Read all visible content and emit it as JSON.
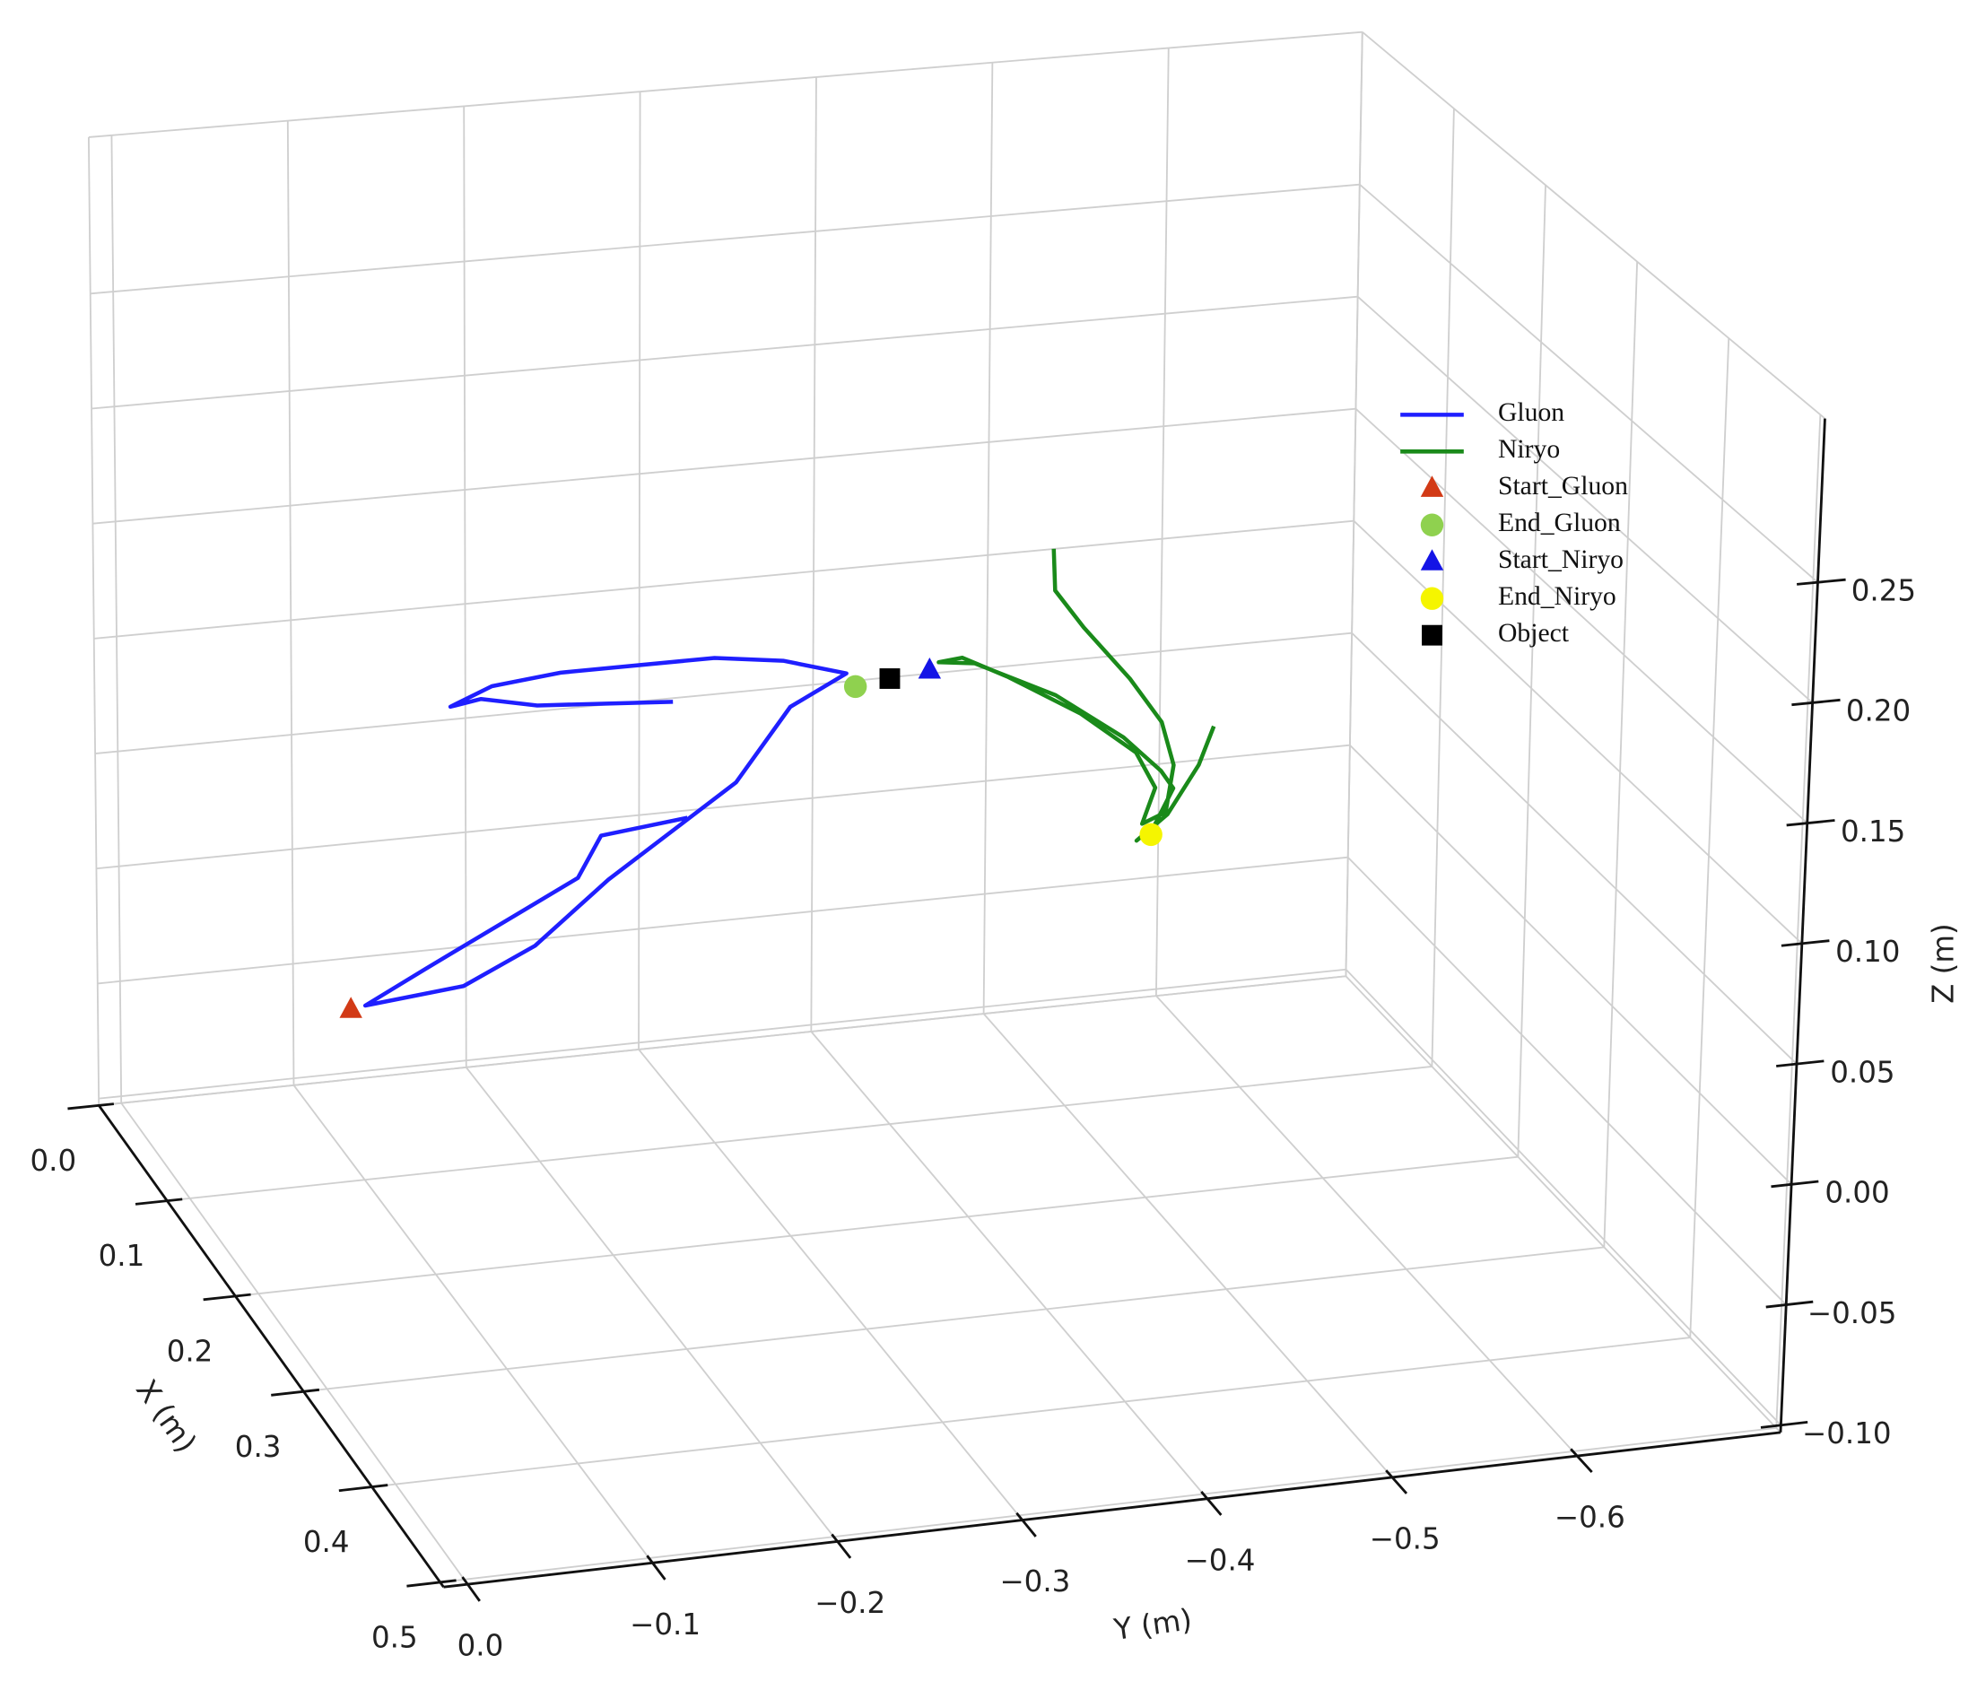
{
  "chart_data": {
    "type": "line3d",
    "xlabel": "X (m)",
    "ylabel": "Y (m)",
    "zlabel": "Z (m)",
    "xlim": [
      0,
      0.505
    ],
    "ylim": [
      0.013,
      -0.71
    ],
    "zlim": [
      -0.103,
      0.318
    ],
    "xticks": [
      {
        "value": 0,
        "label": "0.0"
      },
      0.1,
      0.2,
      0.3,
      0.4,
      0.5
    ],
    "yticks": [
      {
        "value": 0,
        "label": "0.0"
      },
      {
        "value": -0.1,
        "label": "−0.1"
      },
      {
        "value": -0.2,
        "label": "−0.2"
      },
      {
        "value": -0.3,
        "label": "−0.3"
      },
      {
        "value": -0.4,
        "label": "−0.4"
      },
      {
        "value": -0.5,
        "label": "−0.5"
      },
      {
        "value": -0.6,
        "label": "−0.6"
      }
    ],
    "zticks": [
      {
        "value": -0.1,
        "label": "−0.10"
      },
      {
        "value": -0.05,
        "label": "−0.05"
      },
      {
        "value": 0,
        "label": "0.00"
      },
      {
        "value": 0.05,
        "label": "0.05"
      },
      {
        "value": 0.1,
        "label": "0.10"
      },
      0.15,
      {
        "value": 0.2,
        "label": "0.20"
      },
      0.25
    ],
    "grid": true,
    "legend": "center right",
    "series": [
      {
        "name": "Gluon",
        "color": "#1f1fff",
        "x": [
          0.2,
          0.2,
          0.2,
          0.2,
          0.2,
          0.2,
          0.2,
          0.2,
          0.2,
          0.2,
          0.2,
          0.2,
          0.2,
          0.2,
          0.2,
          0.2,
          0.2,
          0.2,
          0.2
        ],
        "y": [
          -0.242,
          -0.194,
          -0.181,
          -0.096,
          -0.062,
          -0.117,
          -0.157,
          -0.198,
          -0.269,
          -0.299,
          -0.33,
          -0.295,
          -0.257,
          -0.172,
          -0.134,
          -0.111,
          -0.128,
          -0.159,
          -0.234
        ],
        "z": [
          0.08,
          0.076,
          0.059,
          0.027,
          0.014,
          0.018,
          0.032,
          0.057,
          0.093,
          0.123,
          0.135,
          0.143,
          0.147,
          0.147,
          0.144,
          0.137,
          0.139,
          0.134,
          0.13
        ]
      },
      {
        "name": "Niryo",
        "color": "#1a8a1a",
        "x": [
          0.2,
          0.2,
          0.2,
          0.2,
          0.2,
          0.2,
          0.2,
          0.2,
          0.2,
          0.2,
          0.2,
          0.2,
          0.2,
          0.2,
          0.2,
          0.2,
          0.2,
          0.2,
          0.2,
          0.2,
          0.2,
          0.2,
          0.2,
          0.2
        ],
        "y": [
          -0.444,
          -0.445,
          -0.461,
          -0.487,
          -0.505,
          -0.512,
          -0.508,
          -0.495,
          -0.502,
          -0.491,
          -0.46,
          -0.419,
          -0.394,
          -0.381,
          -0.401,
          -0.446,
          -0.484,
          -0.505,
          -0.512,
          -0.502,
          -0.492,
          -0.509,
          -0.526,
          -0.534
        ],
        "z": [
          0.18,
          0.162,
          0.145,
          0.121,
          0.101,
          0.082,
          0.062,
          0.058,
          0.073,
          0.089,
          0.108,
          0.127,
          0.137,
          0.136,
          0.134,
          0.117,
          0.096,
          0.08,
          0.072,
          0.057,
          0.051,
          0.061,
          0.081,
          0.097
        ]
      }
    ],
    "markers": [
      {
        "name": "Start_Gluon",
        "shape": "triangle",
        "color": "#d23a16",
        "x": 0.2,
        "y": -0.054,
        "z": 0.013
      },
      {
        "name": "End_Gluon",
        "shape": "circle",
        "color": "#8fd14f",
        "x": 0.2,
        "y": -0.335,
        "z": 0.129
      },
      {
        "name": "Start_Niryo",
        "shape": "triangle",
        "color": "#1414e6",
        "x": 0.2,
        "y": -0.376,
        "z": 0.133
      },
      {
        "name": "End_Niryo",
        "shape": "circle",
        "color": "#f5f500",
        "x": 0.2,
        "y": -0.5,
        "z": 0.053
      },
      {
        "name": "Object",
        "shape": "square",
        "color": "#000000",
        "x": 0.2,
        "y": -0.354,
        "z": 0.131
      }
    ]
  }
}
